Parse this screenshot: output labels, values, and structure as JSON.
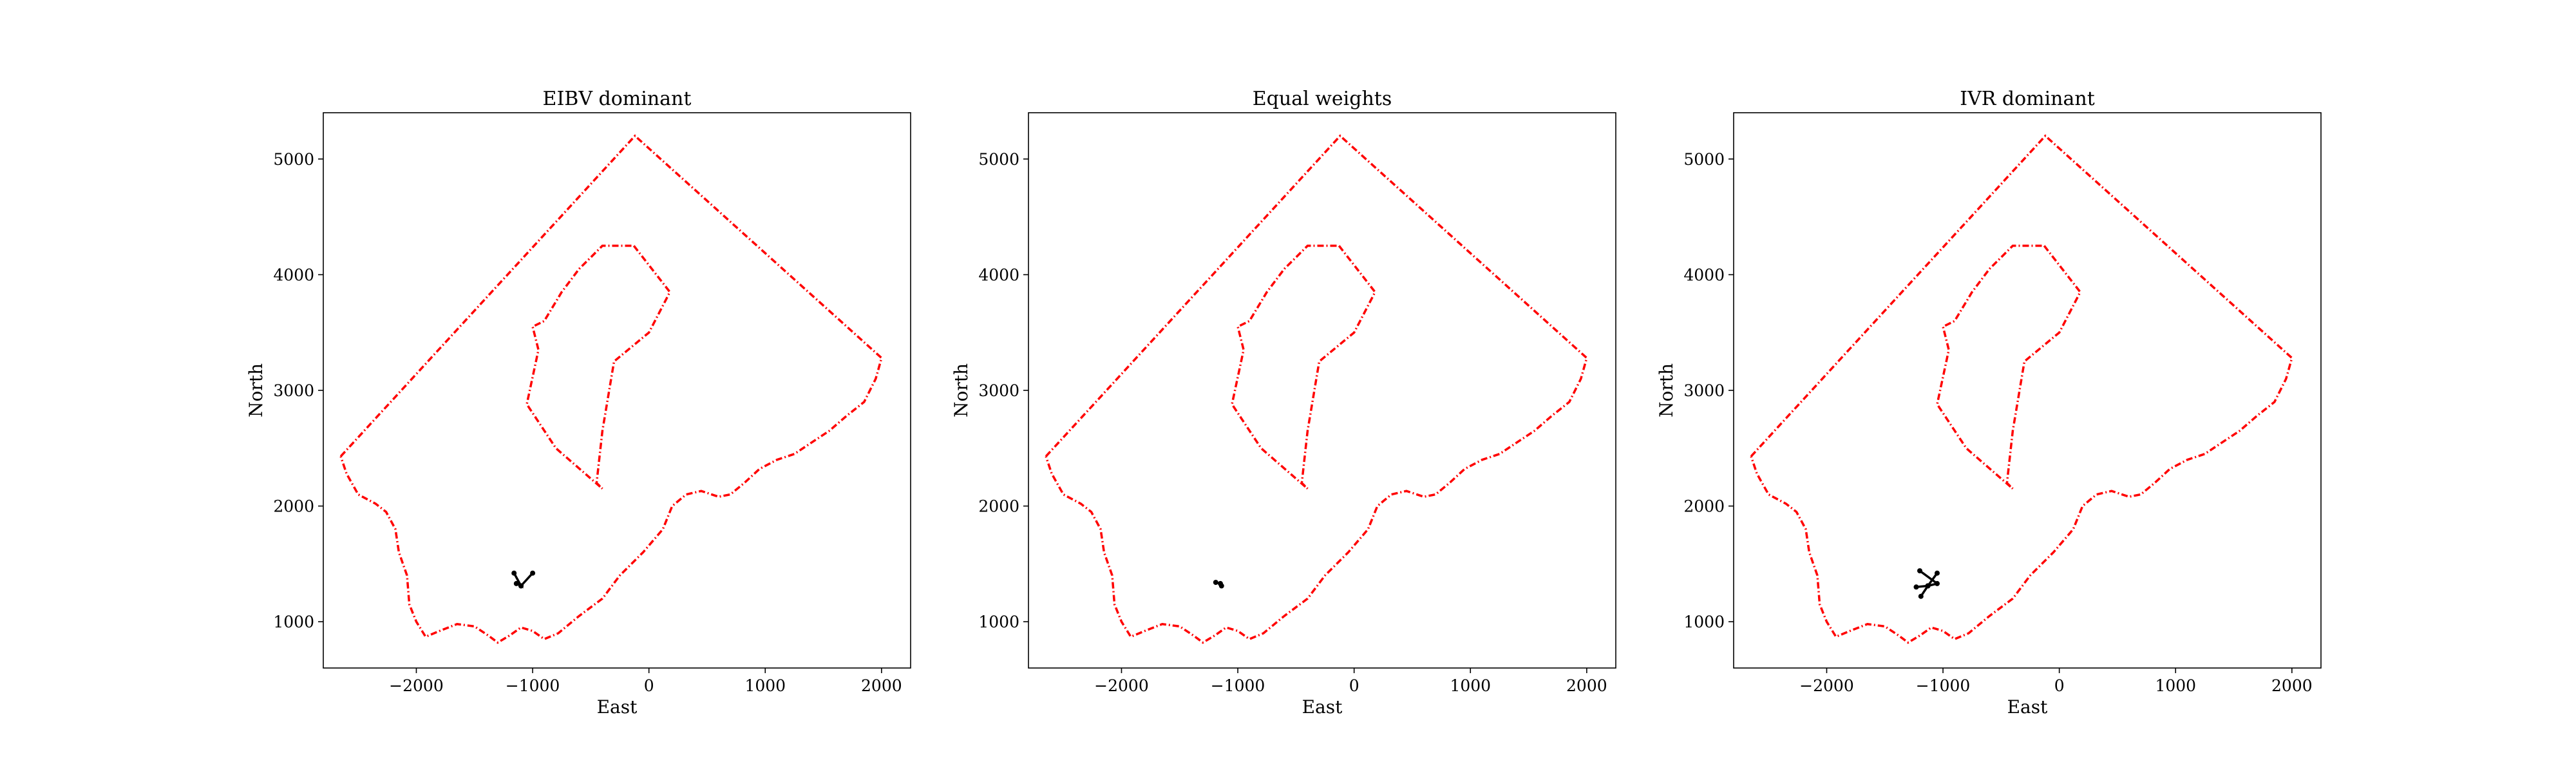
{
  "chart_data": [
    {
      "type": "line",
      "title": "EIBV dominant",
      "xlabel": "East",
      "ylabel": "North",
      "xlim": [
        -2800,
        2250
      ],
      "ylim": [
        600,
        5400
      ],
      "xticks": [
        -2000,
        -1000,
        0,
        1000,
        2000
      ],
      "yticks": [
        1000,
        2000,
        3000,
        4000,
        5000
      ],
      "xtick_labels": [
        "−2000",
        "−1000",
        "0",
        "1000",
        "2000"
      ],
      "ytick_labels": [
        "1000",
        "2000",
        "3000",
        "4000",
        "5000"
      ],
      "boundary_color": "#ff0000",
      "path_color": "#000000",
      "series": [
        {
          "x": [
            -2650,
            -120,
            2000,
            1950,
            1850,
            1700,
            1550,
            1400,
            1250,
            1100,
            950,
            820,
            700,
            600,
            450,
            320,
            200,
            120,
            -50,
            -250,
            -400,
            -600,
            -780,
            -900,
            -1000,
            -1100,
            -1200,
            -1300,
            -1380,
            -1500,
            -1650,
            -1800,
            -1920,
            -2000,
            -2060,
            -2080,
            -2150,
            -2180,
            -2260,
            -2350,
            -2500,
            -2600,
            -2650
          ],
          "y": [
            2430,
            5200,
            3280,
            3100,
            2900,
            2780,
            2650,
            2550,
            2450,
            2400,
            2320,
            2200,
            2100,
            2080,
            2130,
            2100,
            2000,
            1800,
            1600,
            1400,
            1200,
            1050,
            900,
            850,
            920,
            950,
            880,
            820,
            880,
            960,
            980,
            920,
            870,
            1000,
            1150,
            1400,
            1600,
            1800,
            1950,
            2020,
            2100,
            2280,
            2430
          ]
        },
        {
          "x": [
            -130,
            180,
            0,
            -300,
            -400,
            -450,
            -400,
            -800,
            -1050,
            -950,
            -1000,
            -900,
            -750,
            -600,
            -500,
            -400,
            -130
          ],
          "y": [
            4250,
            3850,
            3500,
            3250,
            2650,
            2200,
            2150,
            2500,
            2880,
            3350,
            3550,
            3600,
            3850,
            4050,
            4150,
            4250,
            4250
          ]
        }
      ],
      "paths": [
        {
          "x": [
            -1140,
            -1100,
            -1160
          ],
          "y": [
            1330,
            1310,
            1420
          ]
        },
        {
          "x": [
            -1100,
            -1000
          ],
          "y": [
            1310,
            1420
          ]
        }
      ]
    },
    {
      "type": "line",
      "title": "Equal weights",
      "xlabel": "East",
      "ylabel": "North",
      "xlim": [
        -2800,
        2250
      ],
      "ylim": [
        600,
        5400
      ],
      "xticks": [
        -2000,
        -1000,
        0,
        1000,
        2000
      ],
      "yticks": [
        1000,
        2000,
        3000,
        4000,
        5000
      ],
      "xtick_labels": [
        "−2000",
        "−1000",
        "0",
        "1000",
        "2000"
      ],
      "ytick_labels": [
        "1000",
        "2000",
        "3000",
        "4000",
        "5000"
      ],
      "boundary_color": "#ff0000",
      "path_color": "#000000",
      "series": [
        {
          "x": [
            -2650,
            -120,
            2000,
            1950,
            1850,
            1700,
            1550,
            1400,
            1250,
            1100,
            950,
            820,
            700,
            600,
            450,
            320,
            200,
            120,
            -50,
            -250,
            -400,
            -600,
            -780,
            -900,
            -1000,
            -1100,
            -1200,
            -1300,
            -1380,
            -1500,
            -1650,
            -1800,
            -1920,
            -2000,
            -2060,
            -2080,
            -2150,
            -2180,
            -2260,
            -2350,
            -2500,
            -2600,
            -2650
          ],
          "y": [
            2430,
            5200,
            3280,
            3100,
            2900,
            2780,
            2650,
            2550,
            2450,
            2400,
            2320,
            2200,
            2100,
            2080,
            2130,
            2100,
            2000,
            1800,
            1600,
            1400,
            1200,
            1050,
            900,
            850,
            920,
            950,
            880,
            820,
            880,
            960,
            980,
            920,
            870,
            1000,
            1150,
            1400,
            1600,
            1800,
            1950,
            2020,
            2100,
            2280,
            2430
          ]
        },
        {
          "x": [
            -130,
            180,
            0,
            -300,
            -400,
            -450,
            -400,
            -800,
            -1050,
            -950,
            -1000,
            -900,
            -750,
            -600,
            -500,
            -400,
            -130
          ],
          "y": [
            4250,
            3850,
            3500,
            3250,
            2650,
            2200,
            2150,
            2500,
            2880,
            3350,
            3550,
            3600,
            3850,
            4050,
            4150,
            4250,
            4250
          ]
        }
      ],
      "paths": [
        {
          "x": [
            -1190,
            -1150,
            -1140
          ],
          "y": [
            1340,
            1330,
            1310
          ]
        }
      ]
    },
    {
      "type": "line",
      "title": "IVR dominant",
      "xlabel": "East",
      "ylabel": "North",
      "xlim": [
        -2800,
        2250
      ],
      "ylim": [
        600,
        5400
      ],
      "xticks": [
        -2000,
        -1000,
        0,
        1000,
        2000
      ],
      "yticks": [
        1000,
        2000,
        3000,
        4000,
        5000
      ],
      "xtick_labels": [
        "−2000",
        "−1000",
        "0",
        "1000",
        "2000"
      ],
      "ytick_labels": [
        "1000",
        "2000",
        "3000",
        "4000",
        "5000"
      ],
      "boundary_color": "#ff0000",
      "path_color": "#000000",
      "series": [
        {
          "x": [
            -2650,
            -120,
            2000,
            1950,
            1850,
            1700,
            1550,
            1400,
            1250,
            1100,
            950,
            820,
            700,
            600,
            450,
            320,
            200,
            120,
            -50,
            -250,
            -400,
            -600,
            -780,
            -900,
            -1000,
            -1100,
            -1200,
            -1300,
            -1380,
            -1500,
            -1650,
            -1800,
            -1920,
            -2000,
            -2060,
            -2080,
            -2150,
            -2180,
            -2260,
            -2350,
            -2500,
            -2600,
            -2650
          ],
          "y": [
            2430,
            5200,
            3280,
            3100,
            2900,
            2780,
            2650,
            2550,
            2450,
            2400,
            2320,
            2200,
            2100,
            2080,
            2130,
            2100,
            2000,
            1800,
            1600,
            1400,
            1200,
            1050,
            900,
            850,
            920,
            950,
            880,
            820,
            880,
            960,
            980,
            920,
            870,
            1000,
            1150,
            1400,
            1600,
            1800,
            1950,
            2020,
            2100,
            2280,
            2430
          ]
        },
        {
          "x": [
            -130,
            180,
            0,
            -300,
            -400,
            -450,
            -400,
            -800,
            -1050,
            -950,
            -1000,
            -900,
            -750,
            -600,
            -500,
            -400,
            -130
          ],
          "y": [
            4250,
            3850,
            3500,
            3250,
            2650,
            2200,
            2150,
            2500,
            2880,
            3350,
            3550,
            3600,
            3850,
            4050,
            4150,
            4250,
            4250
          ]
        }
      ],
      "paths": [
        {
          "x": [
            -1230,
            -1130,
            -1050
          ],
          "y": [
            1300,
            1310,
            1420
          ]
        },
        {
          "x": [
            -1130,
            -1190
          ],
          "y": [
            1310,
            1220
          ]
        },
        {
          "x": [
            -1130,
            -1050,
            -1200
          ],
          "y": [
            1310,
            1330,
            1440
          ]
        }
      ]
    }
  ]
}
